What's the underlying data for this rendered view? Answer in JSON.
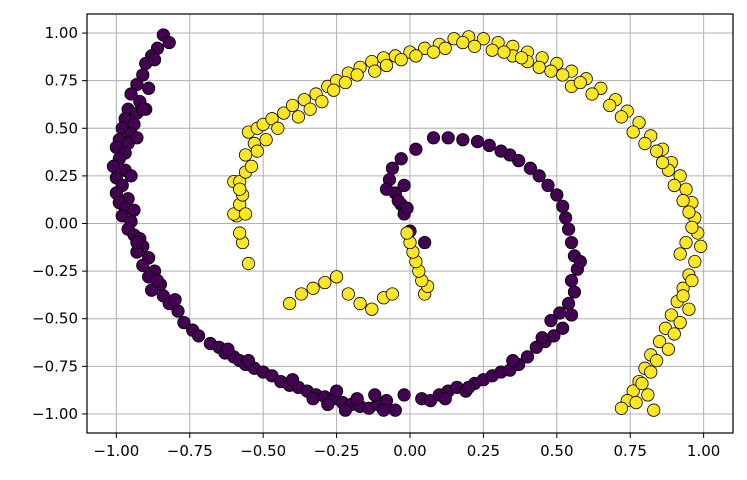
{
  "chart_data": {
    "type": "scatter",
    "title": "",
    "xlabel": "",
    "ylabel": "",
    "xlim": [
      -1.1,
      1.1
    ],
    "ylim": [
      -1.1,
      1.1
    ],
    "grid": true,
    "xticks": [
      -1.0,
      -0.75,
      -0.5,
      -0.25,
      0.0,
      0.25,
      0.5,
      0.75,
      1.0
    ],
    "xtick_labels": [
      "−1.00",
      "−0.75",
      "−0.50",
      "−0.25",
      "0.00",
      "0.25",
      "0.50",
      "0.75",
      "1.00"
    ],
    "yticks": [
      1.0,
      0.75,
      0.5,
      0.25,
      0.0,
      -0.25,
      -0.5,
      -0.75,
      -1.0
    ],
    "ytick_labels": [
      "1.00",
      "0.75",
      "0.50",
      "0.25",
      "0.00",
      "−0.25",
      "−0.50",
      "−0.75",
      "−1.00"
    ],
    "colors": {
      "class_0": "#440154",
      "class_1": "#fde725",
      "edge": "#000000",
      "grid": "#b0b0b0"
    },
    "series": [
      {
        "class": 0,
        "points": [
          [
            -0.84,
            0.99
          ],
          [
            -0.82,
            0.95
          ],
          [
            -0.86,
            0.92
          ],
          [
            -0.88,
            0.88
          ],
          [
            -0.9,
            0.84
          ],
          [
            -0.87,
            0.86
          ],
          [
            -0.91,
            0.78
          ],
          [
            -0.93,
            0.73
          ],
          [
            -0.89,
            0.71
          ],
          [
            -0.95,
            0.68
          ],
          [
            -0.92,
            0.64
          ],
          [
            -0.96,
            0.6
          ],
          [
            -0.9,
            0.6
          ],
          [
            -0.93,
            0.58
          ],
          [
            -0.97,
            0.55
          ],
          [
            -0.94,
            0.52
          ],
          [
            -0.98,
            0.5
          ],
          [
            -0.95,
            0.47
          ],
          [
            -0.99,
            0.44
          ],
          [
            -0.96,
            0.42
          ],
          [
            -1.0,
            0.4
          ],
          [
            -0.97,
            0.37
          ],
          [
            -0.99,
            0.34
          ],
          [
            -1.01,
            0.3
          ],
          [
            -0.97,
            0.28
          ],
          [
            -1.0,
            0.24
          ],
          [
            -0.98,
            0.2
          ],
          [
            -1.0,
            0.16
          ],
          [
            -0.96,
            0.13
          ],
          [
            -0.99,
            0.11
          ],
          [
            -0.97,
            0.08
          ],
          [
            -0.94,
            0.07
          ],
          [
            -0.98,
            0.04
          ],
          [
            -0.95,
            0.01
          ],
          [
            -0.96,
            -0.03
          ],
          [
            -0.94,
            -0.06
          ],
          [
            -0.92,
            -0.08
          ],
          [
            -0.91,
            -0.12
          ],
          [
            -0.93,
            -0.15
          ],
          [
            -0.89,
            -0.18
          ],
          [
            -0.91,
            -0.22
          ],
          [
            -0.87,
            -0.25
          ],
          [
            -0.89,
            -0.28
          ],
          [
            -0.85,
            -0.32
          ],
          [
            -0.88,
            -0.35
          ],
          [
            -0.84,
            -0.38
          ],
          [
            -0.82,
            -0.42
          ],
          [
            -0.79,
            -0.46
          ],
          [
            -0.77,
            -0.52
          ],
          [
            -0.74,
            -0.56
          ],
          [
            -0.72,
            -0.59
          ],
          [
            -0.68,
            -0.63
          ],
          [
            -0.65,
            -0.65
          ],
          [
            -0.63,
            -0.68
          ],
          [
            -0.6,
            -0.7
          ],
          [
            -0.58,
            -0.72
          ],
          [
            -0.56,
            -0.74
          ],
          [
            -0.53,
            -0.76
          ],
          [
            -0.5,
            -0.78
          ],
          [
            -0.47,
            -0.8
          ],
          [
            -0.44,
            -0.83
          ],
          [
            -0.41,
            -0.85
          ],
          [
            -0.38,
            -0.86
          ],
          [
            -0.35,
            -0.88
          ],
          [
            -0.32,
            -0.9
          ],
          [
            -0.29,
            -0.91
          ],
          [
            -0.26,
            -0.92
          ],
          [
            -0.23,
            -0.94
          ],
          [
            -0.2,
            -0.95
          ],
          [
            -0.17,
            -0.96
          ],
          [
            -0.14,
            -0.97
          ],
          [
            -0.11,
            -0.95
          ],
          [
            -0.08,
            -0.93
          ],
          [
            -0.22,
            -0.98
          ],
          [
            -0.28,
            -0.95
          ],
          [
            -0.33,
            -0.92
          ],
          [
            -0.18,
            -0.92
          ],
          [
            -0.12,
            -0.9
          ],
          [
            -0.09,
            -0.98
          ],
          [
            0.04,
            -0.92
          ],
          [
            0.07,
            -0.93
          ],
          [
            0.1,
            -0.9
          ],
          [
            0.13,
            -0.88
          ],
          [
            0.16,
            -0.86
          ],
          [
            0.19,
            -0.88
          ],
          [
            0.22,
            -0.84
          ],
          [
            0.25,
            -0.82
          ],
          [
            0.28,
            -0.8
          ],
          [
            0.31,
            -0.78
          ],
          [
            0.34,
            -0.77
          ],
          [
            0.37,
            -0.74
          ],
          [
            0.4,
            -0.7
          ],
          [
            0.43,
            -0.65
          ],
          [
            0.46,
            -0.62
          ],
          [
            0.49,
            -0.59
          ],
          [
            0.52,
            -0.55
          ],
          [
            0.48,
            -0.51
          ],
          [
            0.51,
            -0.47
          ],
          [
            0.54,
            -0.42
          ],
          [
            0.56,
            -0.36
          ],
          [
            0.55,
            -0.3
          ],
          [
            0.57,
            -0.24
          ],
          [
            0.56,
            -0.17
          ],
          [
            0.55,
            -0.1
          ],
          [
            0.54,
            -0.03
          ],
          [
            0.53,
            0.03
          ],
          [
            0.52,
            0.09
          ],
          [
            0.5,
            0.15
          ],
          [
            0.47,
            0.2
          ],
          [
            0.44,
            0.25
          ],
          [
            0.41,
            0.29
          ],
          [
            0.37,
            0.33
          ],
          [
            0.34,
            0.36
          ],
          [
            0.31,
            0.38
          ],
          [
            0.27,
            0.41
          ],
          [
            0.23,
            0.43
          ],
          [
            0.18,
            0.44
          ],
          [
            0.13,
            0.45
          ],
          [
            0.08,
            0.45
          ],
          [
            0.02,
            0.39
          ],
          [
            -0.03,
            0.34
          ],
          [
            -0.06,
            0.29
          ],
          [
            -0.07,
            0.23
          ],
          [
            -0.05,
            0.16
          ],
          [
            -0.03,
            0.1
          ],
          [
            -0.02,
            0.05
          ],
          [
            0.0,
            -0.04
          ],
          [
            0.05,
            -0.1
          ],
          [
            -0.02,
            0.2
          ],
          [
            -0.08,
            0.18
          ],
          [
            -0.04,
            0.12
          ],
          [
            -0.01,
            0.08
          ],
          [
            0.58,
            -0.2
          ],
          [
            0.55,
            -0.48
          ],
          [
            0.45,
            -0.6
          ],
          [
            0.35,
            -0.72
          ],
          [
            0.2,
            -0.86
          ],
          [
            0.12,
            -0.92
          ],
          [
            -0.02,
            -0.9
          ],
          [
            -0.05,
            -0.98
          ],
          [
            -0.25,
            -0.88
          ],
          [
            -0.4,
            -0.82
          ],
          [
            -0.55,
            -0.72
          ],
          [
            -0.62,
            -0.66
          ],
          [
            -0.8,
            -0.4
          ],
          [
            -0.86,
            -0.3
          ],
          [
            -0.93,
            -0.1
          ],
          [
            -0.95,
            0.25
          ],
          [
            -0.93,
            0.45
          ],
          [
            -0.91,
            0.6
          ]
        ]
      },
      {
        "class": 1,
        "points": [
          [
            -0.55,
            -0.21
          ],
          [
            -0.57,
            -0.1
          ],
          [
            -0.58,
            -0.05
          ],
          [
            -0.59,
            0.04
          ],
          [
            -0.6,
            0.05
          ],
          [
            -0.58,
            0.1
          ],
          [
            -0.57,
            0.15
          ],
          [
            -0.6,
            0.22
          ],
          [
            -0.58,
            0.22
          ],
          [
            -0.56,
            0.27
          ],
          [
            -0.54,
            0.3
          ],
          [
            -0.56,
            0.36
          ],
          [
            -0.53,
            0.42
          ],
          [
            -0.55,
            0.48
          ],
          [
            -0.52,
            0.5
          ],
          [
            -0.5,
            0.52
          ],
          [
            -0.47,
            0.55
          ],
          [
            -0.43,
            0.58
          ],
          [
            -0.4,
            0.62
          ],
          [
            -0.36,
            0.65
          ],
          [
            -0.32,
            0.68
          ],
          [
            -0.28,
            0.72
          ],
          [
            -0.25,
            0.75
          ],
          [
            -0.21,
            0.79
          ],
          [
            -0.17,
            0.82
          ],
          [
            -0.13,
            0.85
          ],
          [
            -0.09,
            0.87
          ],
          [
            -0.05,
            0.88
          ],
          [
            0.0,
            0.9
          ],
          [
            0.05,
            0.92
          ],
          [
            0.1,
            0.94
          ],
          [
            0.15,
            0.97
          ],
          [
            0.2,
            0.98
          ],
          [
            0.25,
            0.97
          ],
          [
            0.3,
            0.95
          ],
          [
            0.35,
            0.93
          ],
          [
            0.4,
            0.9
          ],
          [
            0.45,
            0.87
          ],
          [
            0.5,
            0.84
          ],
          [
            0.55,
            0.8
          ],
          [
            0.6,
            0.76
          ],
          [
            0.65,
            0.71
          ],
          [
            0.7,
            0.65
          ],
          [
            0.74,
            0.59
          ],
          [
            0.78,
            0.53
          ],
          [
            0.82,
            0.46
          ],
          [
            0.86,
            0.39
          ],
          [
            0.89,
            0.32
          ],
          [
            0.92,
            0.25
          ],
          [
            0.94,
            0.18
          ],
          [
            0.96,
            0.11
          ],
          [
            0.97,
            0.03
          ],
          [
            0.98,
            -0.05
          ],
          [
            0.99,
            -0.12
          ],
          [
            0.97,
            -0.2
          ],
          [
            0.95,
            -0.27
          ],
          [
            0.93,
            -0.34
          ],
          [
            0.91,
            -0.41
          ],
          [
            0.89,
            -0.48
          ],
          [
            0.87,
            -0.55
          ],
          [
            0.85,
            -0.62
          ],
          [
            0.82,
            -0.69
          ],
          [
            0.8,
            -0.76
          ],
          [
            0.78,
            -0.83
          ],
          [
            0.76,
            -0.88
          ],
          [
            0.74,
            -0.93
          ],
          [
            0.72,
            -0.97
          ],
          [
            -0.41,
            -0.42
          ],
          [
            -0.37,
            -0.37
          ],
          [
            -0.33,
            -0.34
          ],
          [
            -0.29,
            -0.31
          ],
          [
            -0.25,
            -0.28
          ],
          [
            -0.21,
            -0.37
          ],
          [
            -0.17,
            -0.42
          ],
          [
            -0.13,
            -0.45
          ],
          [
            -0.09,
            -0.39
          ],
          [
            -0.06,
            -0.37
          ],
          [
            0.05,
            -0.37
          ],
          [
            0.06,
            -0.33
          ],
          [
            0.04,
            -0.3
          ],
          [
            0.03,
            -0.25
          ],
          [
            0.02,
            -0.2
          ],
          [
            0.01,
            -0.15
          ],
          [
            0.0,
            -0.1
          ],
          [
            -0.01,
            -0.05
          ],
          [
            0.35,
            0.88
          ],
          [
            0.4,
            0.85
          ],
          [
            0.44,
            0.82
          ],
          [
            0.55,
            0.72
          ],
          [
            0.62,
            0.68
          ],
          [
            0.68,
            0.62
          ],
          [
            0.76,
            0.48
          ],
          [
            0.84,
            0.38
          ],
          [
            0.88,
            0.28
          ],
          [
            0.9,
            0.2
          ],
          [
            0.93,
            0.12
          ],
          [
            0.95,
            0.06
          ],
          [
            0.96,
            -0.02
          ],
          [
            0.94,
            -0.1
          ],
          [
            0.92,
            -0.16
          ],
          [
            0.96,
            -0.3
          ],
          [
            0.93,
            -0.38
          ],
          [
            0.95,
            -0.45
          ],
          [
            0.92,
            -0.52
          ],
          [
            0.9,
            -0.58
          ],
          [
            0.88,
            -0.66
          ],
          [
            0.84,
            -0.72
          ],
          [
            0.82,
            -0.78
          ],
          [
            0.79,
            -0.84
          ],
          [
            0.81,
            -0.9
          ],
          [
            0.77,
            -0.94
          ],
          [
            0.83,
            -0.98
          ],
          [
            -0.52,
            0.38
          ],
          [
            -0.49,
            0.44
          ],
          [
            -0.45,
            0.5
          ],
          [
            -0.38,
            0.56
          ],
          [
            -0.34,
            0.6
          ],
          [
            -0.3,
            0.64
          ],
          [
            -0.26,
            0.7
          ],
          [
            -0.22,
            0.74
          ],
          [
            -0.18,
            0.78
          ],
          [
            -0.12,
            0.8
          ],
          [
            -0.08,
            0.83
          ],
          [
            -0.03,
            0.86
          ],
          [
            0.02,
            0.88
          ],
          [
            0.08,
            0.9
          ],
          [
            0.12,
            0.92
          ],
          [
            0.18,
            0.95
          ],
          [
            0.22,
            0.93
          ],
          [
            0.28,
            0.91
          ],
          [
            0.32,
            0.9
          ],
          [
            0.38,
            0.87
          ],
          [
            0.48,
            0.8
          ],
          [
            0.52,
            0.78
          ],
          [
            0.58,
            0.74
          ],
          [
            0.72,
            0.56
          ],
          [
            0.8,
            0.42
          ],
          [
            0.86,
            0.32
          ],
          [
            -0.56,
            0.05
          ],
          [
            -0.58,
            0.18
          ]
        ]
      }
    ]
  }
}
